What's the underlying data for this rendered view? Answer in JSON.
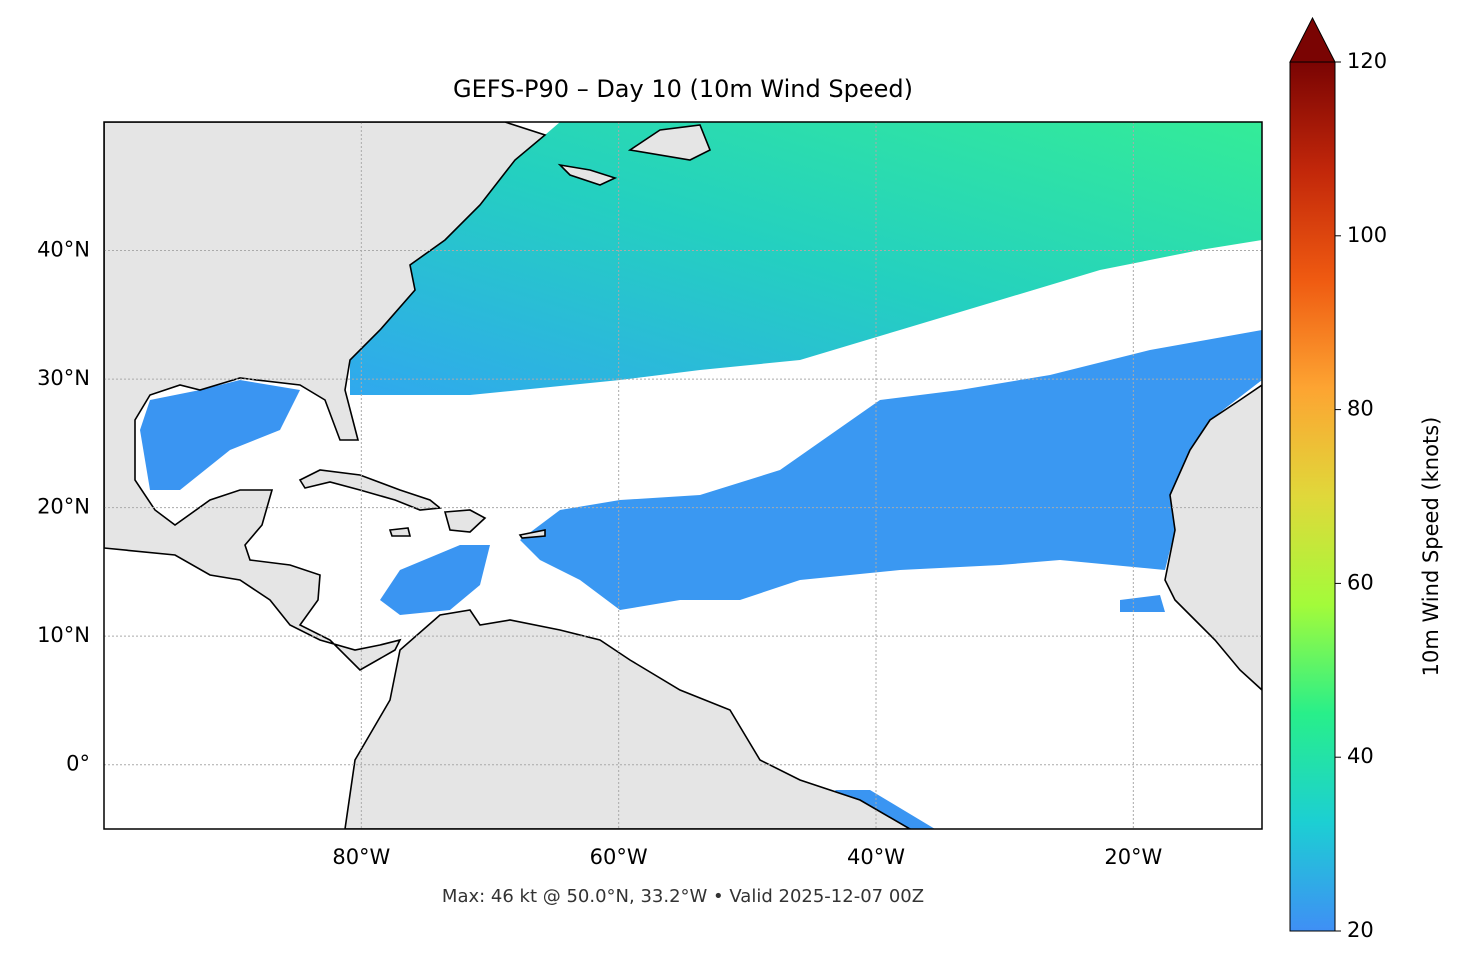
{
  "chart_data": {
    "type": "map",
    "title": "GEFS-P90 – Day 10 (10m Wind Speed)",
    "footnote": "Max: 46 kt @ 50.0°N, 33.2°W • Valid 2025-12-07 00Z",
    "xlim": [
      -100,
      -10
    ],
    "ylim": [
      -5,
      50
    ],
    "xticks": [
      {
        "value": -80,
        "label": "80°W"
      },
      {
        "value": -60,
        "label": "60°W"
      },
      {
        "value": -40,
        "label": "40°W"
      },
      {
        "value": -20,
        "label": "20°W"
      }
    ],
    "yticks": [
      {
        "value": 0,
        "label": "0°"
      },
      {
        "value": 10,
        "label": "10°N"
      },
      {
        "value": 20,
        "label": "20°N"
      },
      {
        "value": 30,
        "label": "30°N"
      },
      {
        "value": 40,
        "label": "40°N"
      }
    ],
    "grid": true,
    "colorbar": {
      "label": "10m Wind Speed (knots)",
      "lim": [
        20,
        120
      ],
      "ticks": [
        20,
        40,
        60,
        80,
        100,
        120
      ],
      "colors": [
        "#3f8ff5",
        "#1ccfd3",
        "#28ef8a",
        "#a3fb3a",
        "#e0d83a",
        "#fda432",
        "#ef5a11",
        "#c2270a",
        "#7a0403"
      ]
    }
  }
}
